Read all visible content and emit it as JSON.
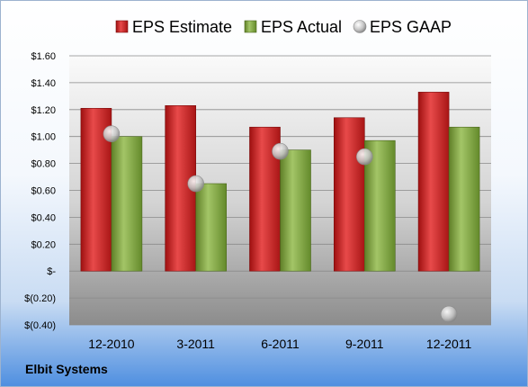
{
  "company_name": "Elbit Systems",
  "colors": {
    "estimate": "#cc1f1f",
    "actual": "#7ea13c",
    "gaap": "#bfbfbf"
  },
  "chart_data": {
    "type": "bar",
    "categories": [
      "12-2010",
      "3-2011",
      "6-2011",
      "9-2011",
      "12-2011"
    ],
    "series": [
      {
        "name": "EPS Estimate",
        "kind": "bar",
        "values": [
          1.21,
          1.23,
          1.07,
          1.14,
          1.33
        ]
      },
      {
        "name": "EPS Actual",
        "kind": "bar",
        "values": [
          1.0,
          0.65,
          0.9,
          0.97,
          1.07
        ]
      },
      {
        "name": "EPS GAAP",
        "kind": "scatter",
        "values": [
          1.02,
          0.65,
          0.89,
          0.85,
          -0.32
        ]
      }
    ],
    "ylim": [
      -0.4,
      1.6
    ],
    "yticks": [
      -0.4,
      -0.2,
      0,
      0.2,
      0.4,
      0.6,
      0.8,
      1.0,
      1.2,
      1.4,
      1.6
    ],
    "ytick_labels": [
      "$(0.40)",
      "$(0.20)",
      "$-",
      "$0.20",
      "$0.40",
      "$0.60",
      "$0.80",
      "$1.00",
      "$1.20",
      "$1.40",
      "$1.60"
    ],
    "grid": true,
    "legend_position": "top"
  }
}
